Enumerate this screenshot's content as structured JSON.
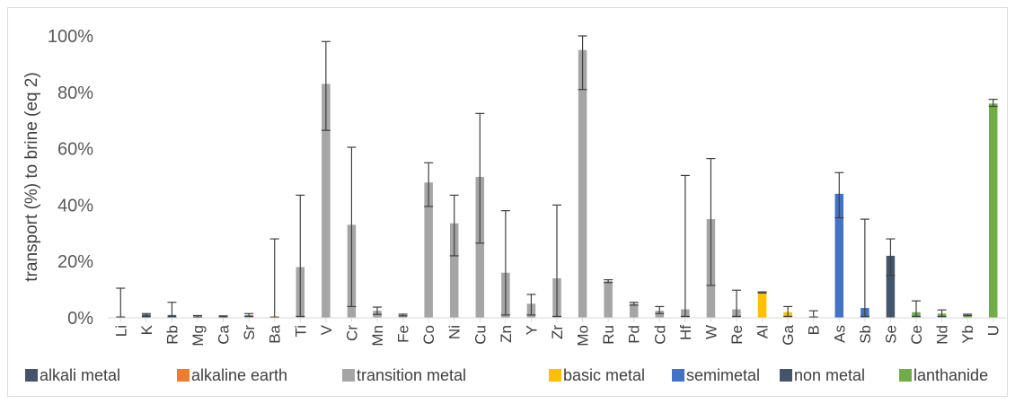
{
  "chart_data": {
    "type": "bar",
    "title": "",
    "xlabel": "",
    "ylabel": "transport (%) to brine (eq 2)",
    "ylim": [
      0,
      100
    ],
    "yticks": [
      0,
      20,
      40,
      60,
      80,
      100
    ],
    "ytick_labels": [
      "0%",
      "20%",
      "40%",
      "60%",
      "80%",
      "100%"
    ],
    "grid": false,
    "legend_position": "bottom",
    "categories": [
      "Li",
      "K",
      "Rb",
      "Mg",
      "Ca",
      "Sr",
      "Ba",
      "Ti",
      "V",
      "Cr",
      "Mn",
      "Fe",
      "Co",
      "Ni",
      "Cu",
      "Zn",
      "Y",
      "Zr",
      "Mo",
      "Ru",
      "Pd",
      "Cd",
      "Hf",
      "W",
      "Re",
      "Al",
      "Ga",
      "B",
      "As",
      "Sb",
      "Se",
      "Ce",
      "Nd",
      "Yb",
      "U"
    ],
    "values": [
      0.5,
      1.2,
      1.0,
      0.5,
      0.5,
      1.0,
      0.5,
      18,
      83,
      33,
      2.5,
      1.0,
      48,
      33.5,
      50,
      16,
      5,
      14,
      95,
      13,
      5,
      2.5,
      3,
      35,
      3,
      9,
      2,
      0.5,
      44,
      3.5,
      22,
      2,
      1.5,
      1.0,
      76
    ],
    "error_high": [
      10.5,
      1.5,
      5.5,
      0.8,
      0.7,
      1.5,
      28,
      43.5,
      98,
      60.5,
      3.8,
      1.3,
      55,
      43.5,
      72.5,
      38,
      8.3,
      40,
      100,
      13.5,
      5.5,
      4,
      50.5,
      56.5,
      9.8,
      9.2,
      4,
      2.5,
      51.5,
      35,
      28,
      6,
      2.8,
      1.3,
      77.5
    ],
    "error_low": [
      0.2,
      0.5,
      0.3,
      0.3,
      0.3,
      0.5,
      0.2,
      0.5,
      66.5,
      4,
      1.2,
      0.7,
      39.5,
      22,
      26.5,
      1,
      1,
      0.5,
      81,
      12.5,
      4.5,
      1.5,
      0.5,
      11.5,
      0.5,
      8.8,
      0.5,
      0.2,
      35.5,
      0.5,
      15,
      0.5,
      0.5,
      0.8,
      75
    ],
    "groups": [
      "alkali metal",
      "alkali metal",
      "alkali metal",
      "alkaline earth",
      "alkaline earth",
      "alkaline earth",
      "alkaline earth",
      "transition  metal",
      "transition  metal",
      "transition  metal",
      "transition  metal",
      "transition  metal",
      "transition  metal",
      "transition  metal",
      "transition  metal",
      "transition  metal",
      "transition  metal",
      "transition  metal",
      "transition  metal",
      "transition  metal",
      "transition  metal",
      "transition  metal",
      "transition  metal",
      "transition  metal",
      "transition  metal",
      "basic metal",
      "basic metal",
      "semimetal",
      "semimetal",
      "semimetal",
      "non metal",
      "lanthanide",
      "lanthanide",
      "lanthanide",
      "lanthanide"
    ],
    "legend": [
      {
        "name": "alkali metal",
        "color": "#44546a"
      },
      {
        "name": "alkaline earth",
        "color": "#ed7d31"
      },
      {
        "name": "transition  metal",
        "color": "#a5a5a5"
      },
      {
        "name": "basic metal",
        "color": "#ffc000"
      },
      {
        "name": "semimetal",
        "color": "#4472c4"
      },
      {
        "name": "non metal",
        "color": "#44546a"
      },
      {
        "name": "lanthanide",
        "color": "#70ad47"
      }
    ]
  }
}
